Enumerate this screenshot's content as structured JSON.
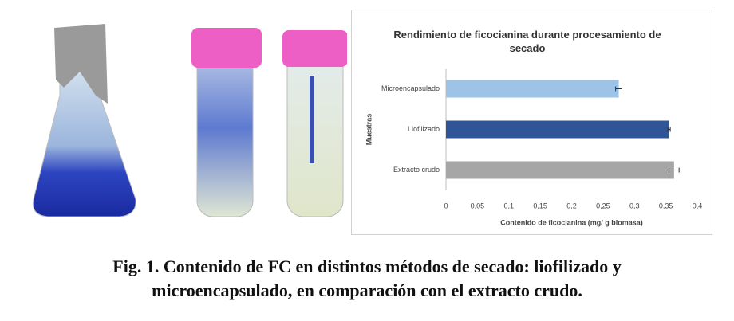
{
  "chart_data": {
    "type": "bar",
    "orientation": "horizontal",
    "title": "Rendimiento de ficocianina durante procesamiento de secado",
    "xlabel": "Contenido de ficocianina (mg/ g biomasa)",
    "ylabel": "Muestras",
    "categories": [
      "Microencapsulado",
      "Liofilizado",
      "Extracto crudo"
    ],
    "values": [
      0.275,
      0.355,
      0.363
    ],
    "errors": [
      0.005,
      0.002,
      0.008
    ],
    "colors": [
      "#9dc3e6",
      "#2f5597",
      "#a6a6a6"
    ],
    "xlim": [
      0,
      0.4
    ],
    "xticks": [
      0,
      {
        "value": 0.05,
        "label": "0,05"
      },
      {
        "value": 0.1,
        "label": "0,1"
      },
      {
        "value": 0.15,
        "label": "0,15"
      },
      {
        "value": 0.2,
        "label": "0,2"
      },
      {
        "value": 0.25,
        "label": "0,25"
      },
      {
        "value": 0.3,
        "label": "0,3"
      },
      {
        "value": 0.35,
        "label": "0,35"
      },
      {
        "value": 0.4,
        "label": "0,4"
      }
    ],
    "grid": false
  },
  "caption": {
    "line1": "Fig. 1. Contenido de FC en distintos métodos de secado: liofilizado y",
    "line2": "microencapsulado, en comparación con el extracto crudo."
  }
}
